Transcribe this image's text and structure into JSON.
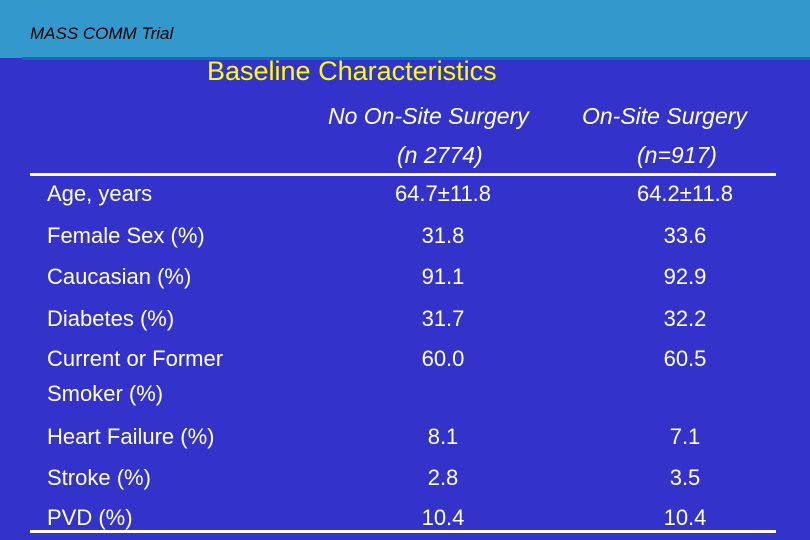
{
  "header": {
    "trial_name": "MASS COMM Trial",
    "title": "Baseline Characteristics"
  },
  "table": {
    "columns": [
      {
        "name": "No On-Site Surgery",
        "n": "(n 2774)"
      },
      {
        "name": "On-Site Surgery",
        "n": "(n=917)"
      }
    ],
    "rows": [
      {
        "label": "Age, years",
        "label_line2": "",
        "v1": "64.7±11.8",
        "v2": "64.2±11.8"
      },
      {
        "label": "Female Sex (%)",
        "label_line2": "",
        "v1": "31.8",
        "v2": "33.6"
      },
      {
        "label": "Caucasian (%)",
        "label_line2": "",
        "v1": "91.1",
        "v2": "92.9"
      },
      {
        "label": "Diabetes (%)",
        "label_line2": "",
        "v1": "31.7",
        "v2": "32.2"
      },
      {
        "label": "Current or Former",
        "label_line2": "Smoker (%)",
        "v1": "60.0",
        "v2": "60.5"
      },
      {
        "label": "Heart Failure (%)",
        "label_line2": "",
        "v1": "8.1",
        "v2": "7.1"
      },
      {
        "label": "Stroke (%)",
        "label_line2": "",
        "v1": "2.8",
        "v2": "3.5"
      },
      {
        "label": "PVD (%)",
        "label_line2": "",
        "v1": "10.4",
        "v2": "10.4"
      }
    ]
  },
  "colors": {
    "background": "#3333cc",
    "title": "#ffff00",
    "banner": "#3399cc"
  }
}
